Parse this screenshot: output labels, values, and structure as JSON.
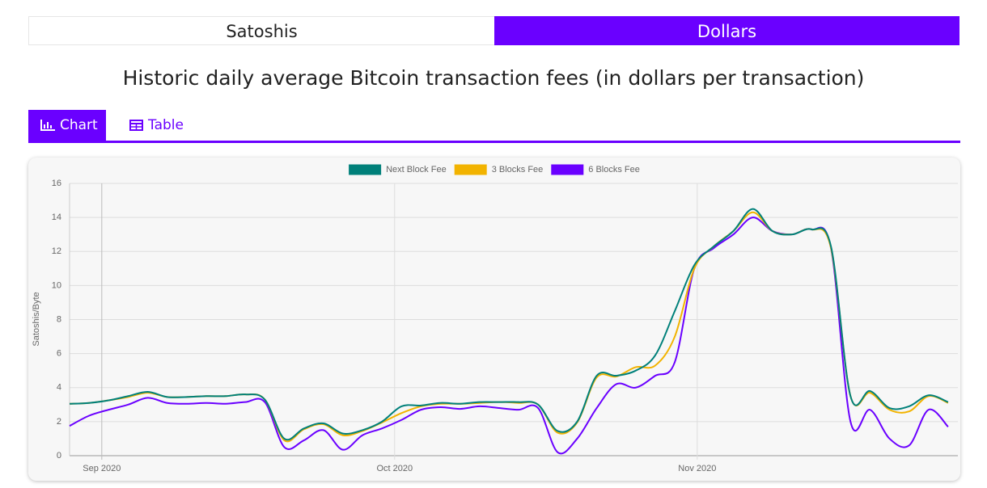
{
  "toggle": {
    "options": [
      "Satoshis",
      "Dollars"
    ],
    "active": 1
  },
  "title": "Historic daily average Bitcoin transaction fees (in dollars per transaction)",
  "tabs": {
    "items": [
      "Chart",
      "Table"
    ],
    "active": 0
  },
  "chart_data": {
    "type": "line",
    "y_label": "Satoshis/Byte",
    "legend": "top",
    "grid": true,
    "x": [
      0,
      2,
      4,
      6,
      8,
      10,
      12,
      14,
      16,
      18,
      20,
      22,
      24,
      26,
      28,
      30,
      32,
      34,
      36,
      38,
      40,
      42,
      44,
      46,
      48,
      50,
      52,
      54,
      56,
      58,
      60,
      62,
      64,
      66,
      68,
      70,
      72,
      74,
      76,
      78,
      80,
      82,
      84,
      86,
      88,
      90
    ],
    "xlim": [
      0,
      91
    ],
    "xticks": [
      {
        "value": 3.3,
        "label": "Sep 2020"
      },
      {
        "value": 33.3,
        "label": "Oct 2020"
      },
      {
        "value": 64.3,
        "label": "Nov 2020"
      }
    ],
    "ylim": [
      0,
      16
    ],
    "yticks": [
      0,
      2,
      4,
      6,
      8,
      10,
      12,
      14,
      16
    ],
    "series": [
      {
        "name": "Next Block Fee",
        "color": "#00807a",
        "values": [
          3.05,
          3.1,
          3.25,
          3.5,
          3.75,
          3.45,
          3.45,
          3.5,
          3.5,
          3.6,
          3.3,
          1.0,
          1.6,
          1.9,
          1.3,
          1.5,
          2.0,
          2.9,
          2.95,
          3.1,
          3.05,
          3.15,
          3.15,
          3.15,
          3.0,
          1.45,
          2.0,
          4.7,
          4.7,
          5.0,
          5.9,
          8.5,
          11.2,
          12.3,
          13.2,
          14.5,
          13.2,
          13.0,
          13.3,
          12.3,
          3.5,
          3.8,
          2.8,
          2.9,
          3.55,
          3.15
        ]
      },
      {
        "name": "3 Blocks Fee",
        "color": "#f2b300",
        "values": [
          3.05,
          3.1,
          3.25,
          3.45,
          3.7,
          3.45,
          3.45,
          3.5,
          3.5,
          3.6,
          3.3,
          0.9,
          1.55,
          1.85,
          1.2,
          1.45,
          1.95,
          2.5,
          2.9,
          3.05,
          3.05,
          3.1,
          3.15,
          3.1,
          3.0,
          1.35,
          1.95,
          4.6,
          4.65,
          5.2,
          5.3,
          7.0,
          11.0,
          12.3,
          13.2,
          14.3,
          13.2,
          13.0,
          13.3,
          12.2,
          3.5,
          3.7,
          2.7,
          2.6,
          3.5,
          3.1
        ]
      },
      {
        "name": "6 Blocks Fee",
        "color": "#6a00ff",
        "values": [
          1.75,
          2.35,
          2.7,
          3.0,
          3.4,
          3.1,
          3.05,
          3.1,
          3.05,
          3.15,
          3.15,
          0.5,
          0.9,
          1.5,
          0.35,
          1.2,
          1.6,
          2.1,
          2.7,
          2.85,
          2.75,
          2.9,
          2.8,
          2.7,
          2.8,
          0.2,
          1.0,
          2.8,
          4.2,
          4.0,
          4.7,
          5.5,
          11.0,
          12.2,
          13.0,
          14.0,
          13.2,
          13.0,
          13.3,
          12.2,
          2.0,
          2.7,
          1.0,
          0.6,
          2.7,
          1.7
        ]
      }
    ]
  }
}
